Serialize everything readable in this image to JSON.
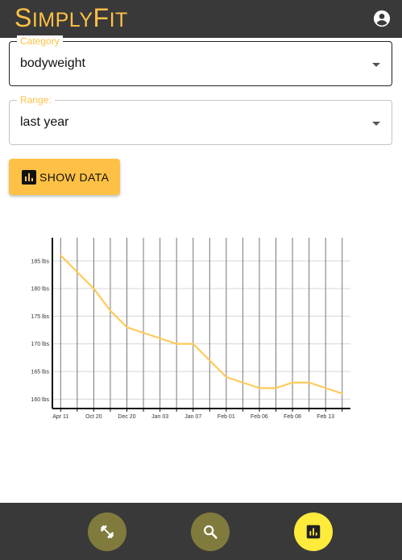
{
  "app": {
    "title_first": "S",
    "title_mid": "IMPLY",
    "title_cap2": "F",
    "title_end": "IT",
    "account_icon": "account-circle-icon"
  },
  "form": {
    "category": {
      "label": "Category",
      "value": "bodyweight"
    },
    "range": {
      "label": "Range:",
      "value": "last year"
    },
    "show_button": {
      "label": "SHOW DATA",
      "icon": "bar-chart-icon"
    }
  },
  "colors": {
    "accent": "#ffc145",
    "appbar": "#393939",
    "nav_inactive": "#807b3d",
    "nav_active": "#ffeb3b",
    "line": "#ffca58"
  },
  "chart_data": {
    "type": "line",
    "x": [
      "Apr 11",
      "",
      "Oct 20",
      "",
      "Dec 20",
      "",
      "Jan 03",
      "",
      "Jan 07",
      "",
      "Feb 01",
      "",
      "Feb 06",
      "",
      "Feb 08",
      "",
      "Feb 13",
      ""
    ],
    "x_tick_labels": [
      "Apr 11",
      "Oct 20",
      "Dec 20",
      "Jan 03",
      "Jan 07",
      "Feb 01",
      "Feb 06",
      "Feb 08",
      "Feb 13"
    ],
    "series": [
      {
        "values": [
          186,
          183,
          180,
          176,
          173,
          172,
          171,
          170,
          170,
          167,
          164,
          163,
          162,
          162,
          163,
          163,
          162,
          161
        ]
      }
    ],
    "y_ticks": [
      "160 lbs",
      "165 lbs",
      "170 lbs",
      "175 lbs",
      "180 lbs",
      "185 lbs"
    ],
    "y_tick_values": [
      160,
      165,
      170,
      175,
      180,
      185
    ],
    "ylim": [
      158.3,
      189.2
    ],
    "grid": true
  },
  "nav": [
    {
      "name": "workout",
      "icon": "dumbbell-icon",
      "active": false
    },
    {
      "name": "search",
      "icon": "search-icon",
      "active": false
    },
    {
      "name": "stats",
      "icon": "bar-chart-icon",
      "active": true
    }
  ]
}
